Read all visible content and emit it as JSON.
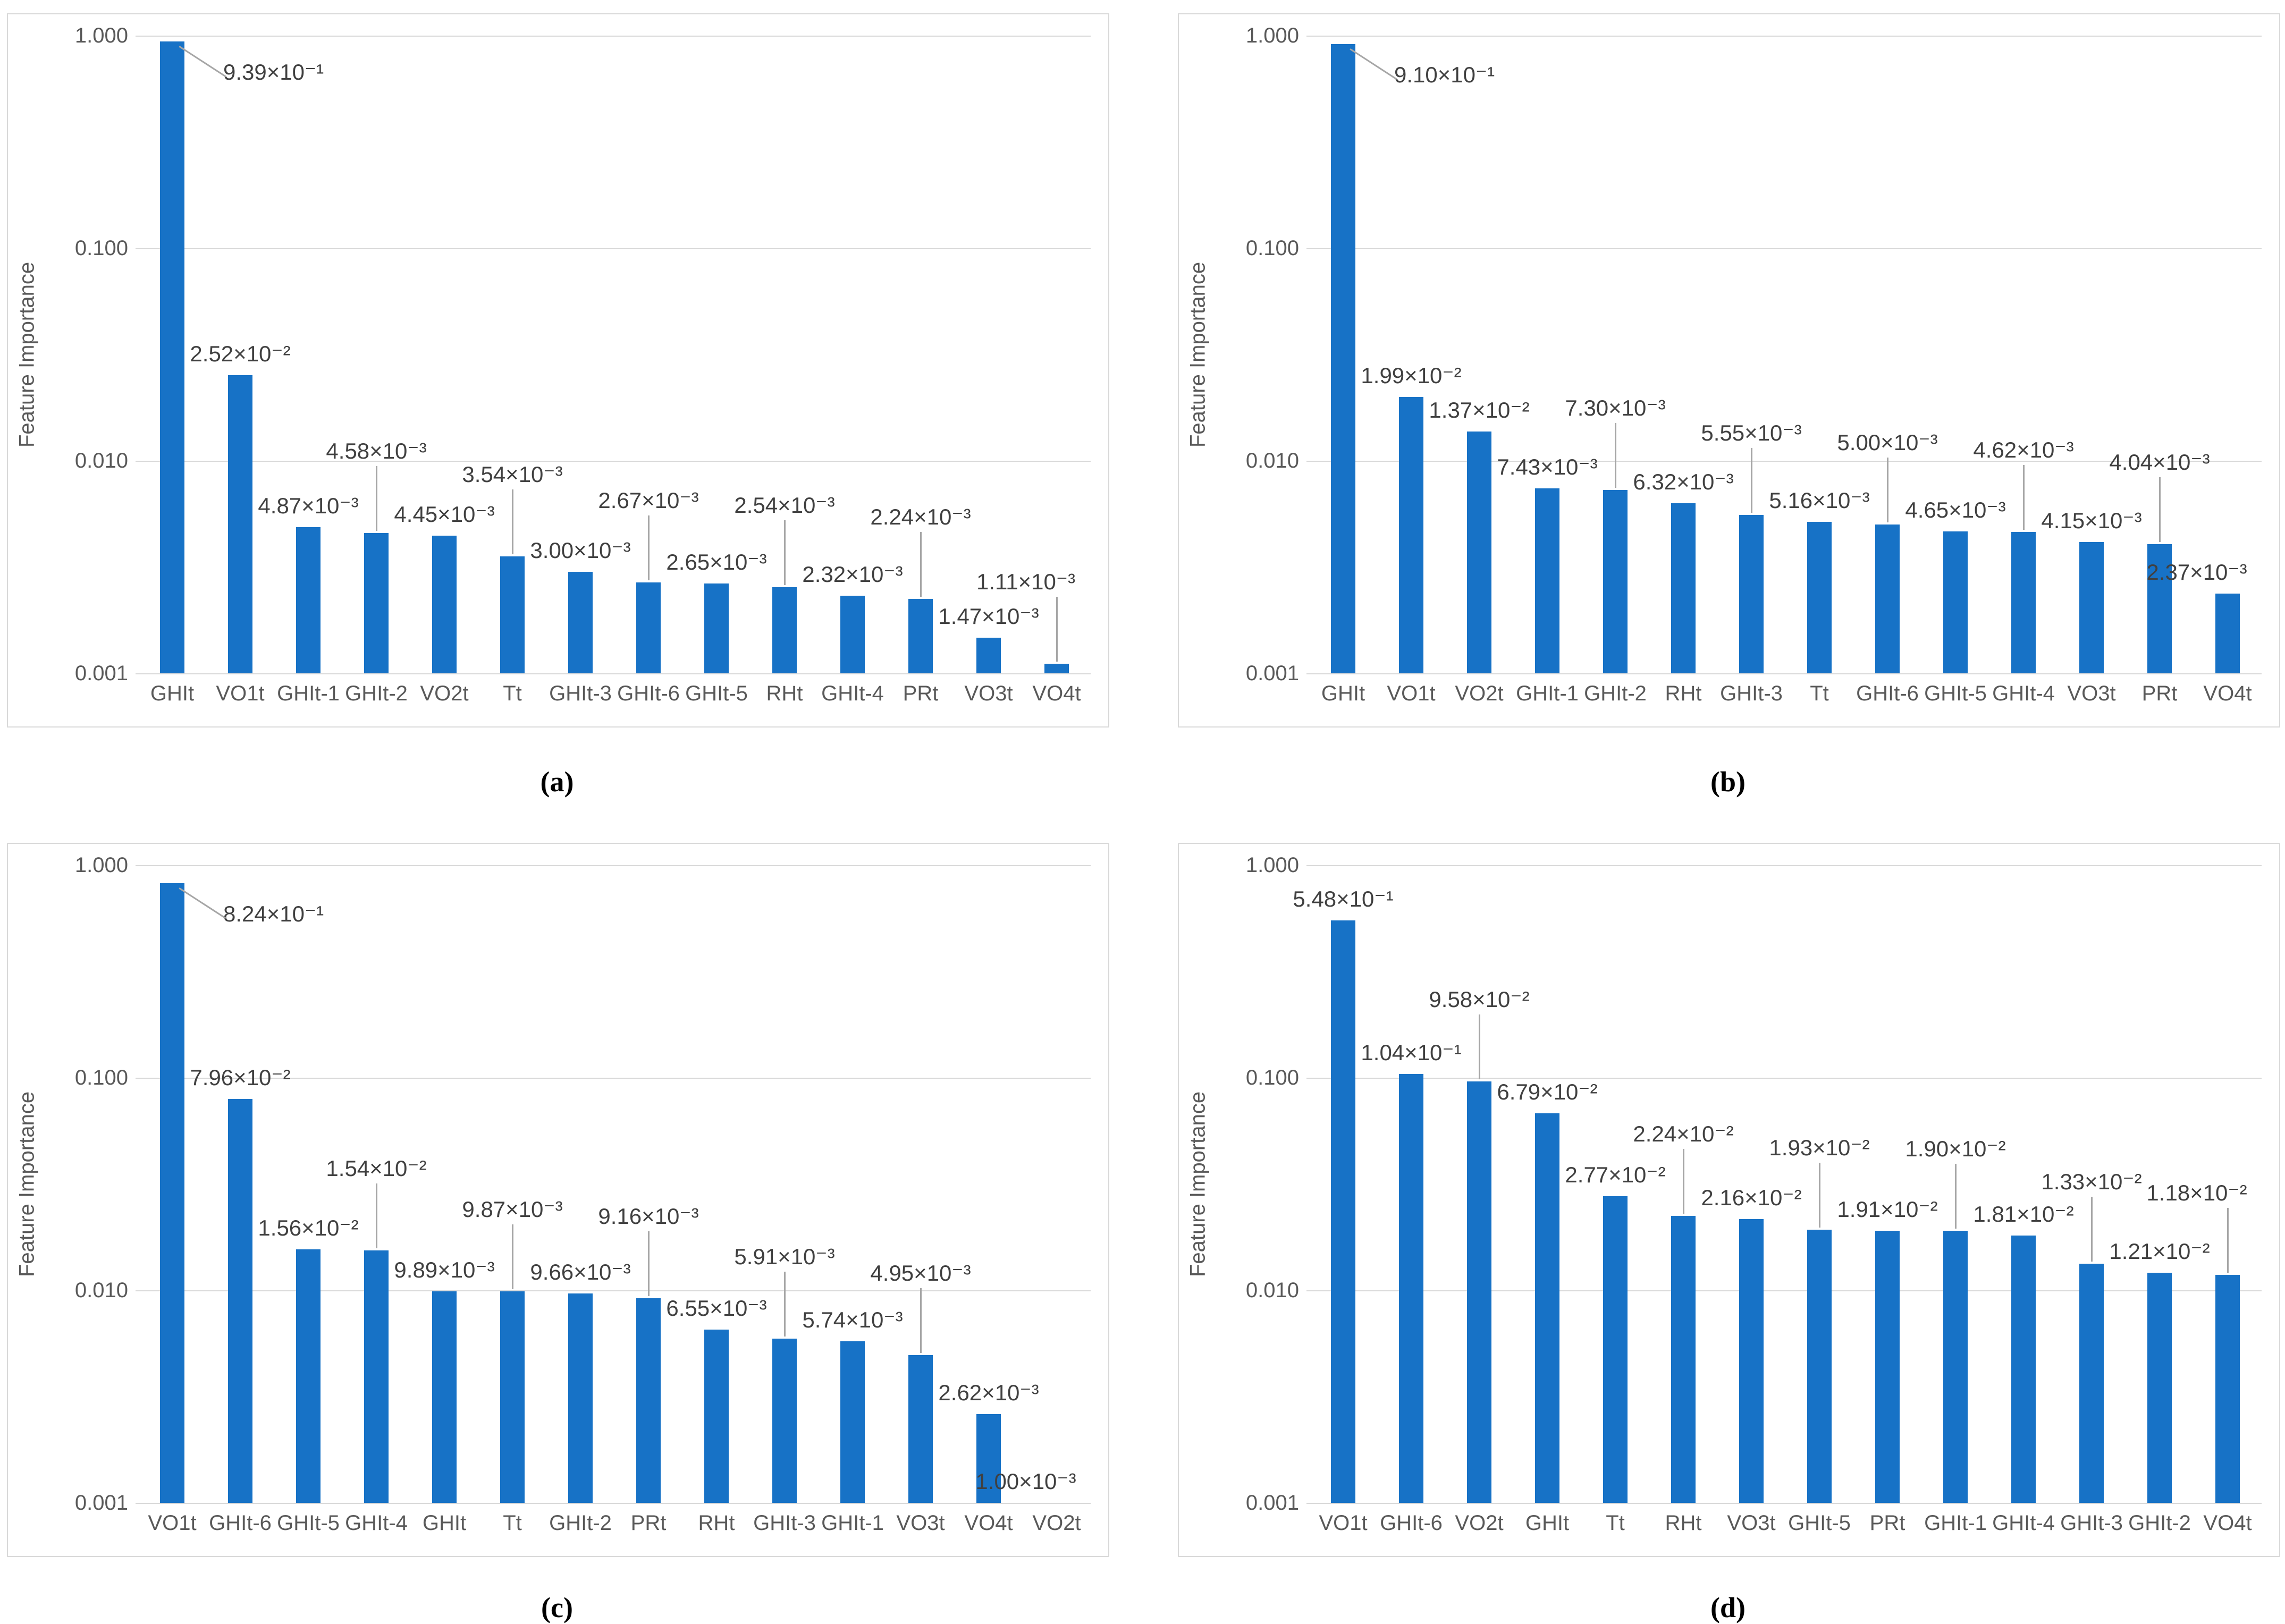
{
  "figure": {
    "y_axis_title": "Feature Importance",
    "y_tick_labels": [
      "1.000",
      "0.100",
      "0.010",
      "0.001"
    ],
    "colors": {
      "bar": "#1772C6",
      "gridline": "#D9D9D9",
      "panel_border": "#D9D9D9",
      "axis_text": "#595959",
      "value_label_text": "#404040",
      "leader_line": "#A6A6A6",
      "caption_text": "#000000"
    }
  },
  "chart_data": [
    {
      "type": "bar",
      "panel_caption": "(a)",
      "yscale": "log",
      "ylim": [
        0.001,
        1.0
      ],
      "ylabel": "Feature Importance",
      "y_tick_labels": [
        "1.000",
        "0.100",
        "0.010",
        "0.001"
      ],
      "grid": true,
      "legend": false,
      "categories": [
        "GHIt",
        "VO1t",
        "GHIt-1",
        "GHIt-2",
        "VO2t",
        "Tt",
        "GHIt-3",
        "GHIt-6",
        "GHIt-5",
        "RHt",
        "GHIt-4",
        "PRt",
        "VO3t",
        "VO4t"
      ],
      "values": [
        0.939,
        0.0252,
        0.00487,
        0.00458,
        0.00445,
        0.00354,
        0.003,
        0.00267,
        0.00265,
        0.00254,
        0.00232,
        0.00224,
        0.00147,
        0.00111
      ],
      "value_labels": [
        "9.39×10⁻¹",
        "2.52×10⁻²",
        "4.87×10⁻³",
        "4.58×10⁻³",
        "4.45×10⁻³",
        "3.54×10⁻³",
        "3.00×10⁻³",
        "2.67×10⁻³",
        "2.65×10⁻³",
        "2.54×10⁻³",
        "2.32×10⁻³",
        "2.24×10⁻³",
        "1.47×10⁻³",
        "1.11×10⁻³"
      ]
    },
    {
      "type": "bar",
      "panel_caption": "(b)",
      "yscale": "log",
      "ylim": [
        0.001,
        1.0
      ],
      "ylabel": "Feature Importance",
      "y_tick_labels": [
        "1.000",
        "0.100",
        "0.010",
        "0.001"
      ],
      "grid": true,
      "legend": false,
      "categories": [
        "GHIt",
        "VO1t",
        "VO2t",
        "GHIt-1",
        "GHIt-2",
        "RHt",
        "GHIt-3",
        "Tt",
        "GHIt-6",
        "GHIt-5",
        "GHIt-4",
        "VO3t",
        "PRt",
        "VO4t"
      ],
      "values": [
        0.91,
        0.0199,
        0.0137,
        0.00743,
        0.0073,
        0.00632,
        0.00555,
        0.00516,
        0.005,
        0.00465,
        0.00462,
        0.00415,
        0.00404,
        0.00237
      ],
      "value_labels": [
        "9.10×10⁻¹",
        "1.99×10⁻²",
        "1.37×10⁻²",
        "7.43×10⁻³",
        "7.30×10⁻³",
        "6.32×10⁻³",
        "5.55×10⁻³",
        "5.16×10⁻³",
        "5.00×10⁻³",
        "4.65×10⁻³",
        "4.62×10⁻³",
        "4.15×10⁻³",
        "4.04×10⁻³",
        "2.37×10⁻³"
      ]
    },
    {
      "type": "bar",
      "panel_caption": "(c)",
      "yscale": "log",
      "ylim": [
        0.001,
        1.0
      ],
      "ylabel": "Feature Importance",
      "y_tick_labels": [
        "1.000",
        "0.100",
        "0.010",
        "0.001"
      ],
      "grid": true,
      "legend": false,
      "categories": [
        "VO1t",
        "GHIt-6",
        "GHIt-5",
        "GHIt-4",
        "GHIt",
        "Tt",
        "GHIt-2",
        "PRt",
        "RHt",
        "GHIt-3",
        "GHIt-1",
        "VO3t",
        "VO4t",
        "VO2t"
      ],
      "values": [
        0.824,
        0.0796,
        0.0156,
        0.0154,
        0.00989,
        0.00987,
        0.00966,
        0.00916,
        0.00655,
        0.00591,
        0.00574,
        0.00495,
        0.00262,
        0.001
      ],
      "value_labels": [
        "8.24×10⁻¹",
        "7.96×10⁻²",
        "1.56×10⁻²",
        "1.54×10⁻²",
        "9.89×10⁻³",
        "9.87×10⁻³",
        "9.66×10⁻³",
        "9.16×10⁻³",
        "6.55×10⁻³",
        "5.91×10⁻³",
        "5.74×10⁻³",
        "4.95×10⁻³",
        "2.62×10⁻³",
        "1.00×10⁻³"
      ]
    },
    {
      "type": "bar",
      "panel_caption": "(d)",
      "yscale": "log",
      "ylim": [
        0.001,
        1.0
      ],
      "ylabel": "Feature Importance",
      "y_tick_labels": [
        "1.000",
        "0.100",
        "0.010",
        "0.001"
      ],
      "grid": true,
      "legend": false,
      "categories": [
        "VO1t",
        "GHIt-6",
        "VO2t",
        "GHIt",
        "Tt",
        "RHt",
        "VO3t",
        "GHIt-5",
        "PRt",
        "GHIt-1",
        "GHIt-4",
        "GHIt-3",
        "GHIt-2",
        "VO4t"
      ],
      "values": [
        0.548,
        0.104,
        0.0958,
        0.0679,
        0.0277,
        0.0224,
        0.0216,
        0.0193,
        0.0191,
        0.019,
        0.0181,
        0.0133,
        0.0121,
        0.0118
      ],
      "value_labels": [
        "5.48×10⁻¹",
        "1.04×10⁻¹",
        "9.58×10⁻²",
        "6.79×10⁻²",
        "2.77×10⁻²",
        "2.24×10⁻²",
        "2.16×10⁻²",
        "1.93×10⁻²",
        "1.91×10⁻²",
        "1.90×10⁻²",
        "1.81×10⁻²",
        "1.33×10⁻²",
        "1.21×10⁻²",
        "1.18×10⁻²"
      ]
    }
  ]
}
